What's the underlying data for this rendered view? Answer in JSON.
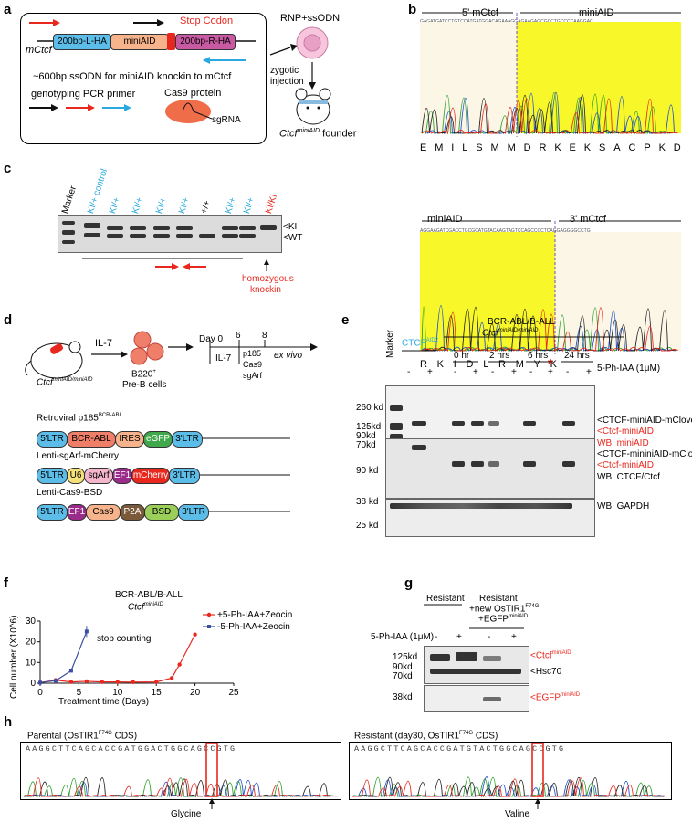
{
  "panels": {
    "a": "a",
    "b": "b",
    "c": "c",
    "d": "d",
    "e": "e",
    "f": "f",
    "g": "g",
    "h": "h"
  },
  "a": {
    "stop_codon": "Stop Codon",
    "locus": "mCtcf",
    "left_ha": "200bp-L-HA",
    "mini": "miniAID",
    "right_ha": "200bp-R-HA",
    "ssodn": "~600bp ssODN for miniAID knockin to mCtcf",
    "primer": "genotyping PCR primer",
    "cas9": "Cas9 protein",
    "sgrna": "sgRNA",
    "rnp": "RNP+ssODN",
    "zygotic1": "zygotic",
    "zygotic2": "injection",
    "founder_a": "Ctcf",
    "founder_sup": "miniAID",
    "founder_b": "founder"
  },
  "b": {
    "top_left": "5' mCtcf",
    "top_right": "miniAID",
    "top_aa": [
      "E",
      "M",
      "I",
      "L",
      "S",
      "M",
      "M",
      "D",
      "R",
      "K",
      "E",
      "K",
      "S",
      "A",
      "C",
      "P",
      "K",
      "D"
    ],
    "bot_left": "miniAID",
    "bot_right": "3' mCtcf",
    "bot_aa": [
      "R",
      "K",
      "I",
      "D",
      "L",
      "R",
      "M",
      "Y",
      "K"
    ],
    "stop_mark": "*",
    "top_seq": "GAGATGATCCTGTCCATGATGGACAGAAAGGAGAAGAGCGCCTGCCCCAAGGAC",
    "bot_seq": "AGGAAGATCGACCTGCGCATGTACAAGTAGTCCAGCCCCTCAGGAGGGGCCTG"
  },
  "c": {
    "lanes": [
      "Marker",
      "KI/+ control",
      "KI/+",
      "KI/+",
      "KI/+",
      "KI/+",
      "+/+",
      "KI/+",
      "KI/+",
      "KI/KI"
    ],
    "ki": "<KI",
    "wt": "<WT",
    "homo1": "homozygous",
    "homo2": "knockin"
  },
  "d": {
    "mouse": "Ctcf",
    "mouse_sup": "miniAID/miniAID",
    "il7": "IL-7",
    "cells1": "B220",
    "cells2": "Pre-B cells",
    "day": "Day 0",
    "d6": "6",
    "d8": "8",
    "il7b": "IL-7",
    "trans": [
      "p185",
      "Cas9",
      "sgArf"
    ],
    "exvivo": "ex vivo",
    "v1_title": "Retroviral p185",
    "v1_sup": "BCR-ABL",
    "v1": [
      "5'LTR",
      "BCR-ABL",
      "IRES",
      "eGFP",
      "3'LTR"
    ],
    "v2_title": "Lenti-sgArf-mCherry",
    "v2": [
      "5'LTR",
      "U6",
      "sgArf",
      "EF1",
      "mCherry",
      "3'LTR"
    ],
    "v3_title": "Lenti-Cas9-BSD",
    "v3": [
      "5'LTR",
      "EF1",
      "Cas9",
      "P2A",
      "BSD",
      "3'LTR"
    ]
  },
  "e": {
    "title1": "BCR-ABL/B-ALL",
    "title2": "Ctcf",
    "title2_sup": "miniAID/miniAID",
    "marker": "Marker",
    "ctrl": "CTCF",
    "ctrl_sup": "AID2",
    "times": [
      "0 hr",
      "2 hrs",
      "6 hrs",
      "24 hrs"
    ],
    "treat": "5-Ph-IAA (1μM)",
    "signs": [
      "-",
      "+",
      "-",
      "+",
      "-",
      "+",
      "-",
      "+",
      "-",
      "+"
    ],
    "mw1": [
      "260 kd",
      "125kd",
      "90kd",
      "70kd"
    ],
    "mw2": [
      "90 kd"
    ],
    "mw3": [
      "38 kd",
      "25 kd"
    ],
    "blot1": [
      "<CTCF-miniAID-mClover3",
      "<Ctcf-miniAID"
    ],
    "wb1": "WB: miniAID",
    "blot2": [
      "<CTCF-mininiAID-mClover3",
      "<Ctcf-miniAID"
    ],
    "wb2": "WB: CTCF/Ctcf",
    "wb3": "WB: GAPDH"
  },
  "f": {
    "title1": "BCR-ABL/B-ALL",
    "title2": "Ctcf",
    "title2_sup": "miniAID",
    "ylabel": "Cell number (X10^6)",
    "xlabel": "Treatment time (Days)",
    "stop": "stop counting",
    "legend": [
      "+5-Ph-IAA+Zeocin",
      "-5-Ph-IAA+Zeocin"
    ]
  },
  "chart_data": {
    "type": "line",
    "title": "BCR-ABL/B-ALL Ctcf miniAID",
    "xlabel": "Treatment time (Days)",
    "ylabel": "Cell number (X10^6)",
    "xlim": [
      0,
      25
    ],
    "ylim": [
      0,
      30
    ],
    "xticks": [
      0,
      5,
      10,
      15,
      20,
      25
    ],
    "yticks": [
      0,
      10,
      20,
      30
    ],
    "series": [
      {
        "name": "+5-Ph-IAA+Zeocin",
        "color": "#e8281e",
        "marker": "circle",
        "x": [
          0,
          2,
          4,
          6,
          8,
          10,
          12,
          15,
          17,
          18,
          20
        ],
        "y": [
          0.3,
          1.5,
          0.6,
          0.9,
          0.6,
          0.6,
          0.5,
          0.6,
          2.5,
          9,
          23.5
        ]
      },
      {
        "name": "-5-Ph-IAA+Zeocin",
        "color": "#3a4fa3",
        "marker": "square",
        "x": [
          0,
          2,
          4,
          6
        ],
        "y": [
          0.3,
          1.2,
          6,
          25
        ]
      }
    ]
  },
  "g": {
    "col1": "Resistant",
    "col2a": "Resistant",
    "col2b": "+new OsTIR1",
    "col2b_sup": "F74G",
    "col2c": "+EGFP",
    "col2c_sup": "miniAID",
    "treat": "5-Ph-IAA (1μM):",
    "signs": [
      "-",
      "+",
      "-",
      "+"
    ],
    "mw1": [
      "125kd",
      "90kd",
      "70kd"
    ],
    "mw2": [
      "38kd"
    ],
    "ctcf": "<Ctcf",
    "ctcf_sup": "miniAID",
    "hsc": "<Hsc70",
    "egfp": "<EGFP",
    "egfp_sup": "miniAID"
  },
  "h": {
    "left_title": "Parental (OsTIR1",
    "left_sup": "F74G",
    "left_end": " CDS)",
    "right_title": "Resistant (day30, OsTIR1",
    "right_sup": "F74G",
    "right_end": " CDS)",
    "left_seq": "AAGGCTTCAGCACCGATGGACTGGCAGCCGTG",
    "right_seq": "AAGGCTTCAGCACCGATGTACTGGCAGCCGTG",
    "left_aa": "Glycine",
    "right_aa": "Valine"
  }
}
